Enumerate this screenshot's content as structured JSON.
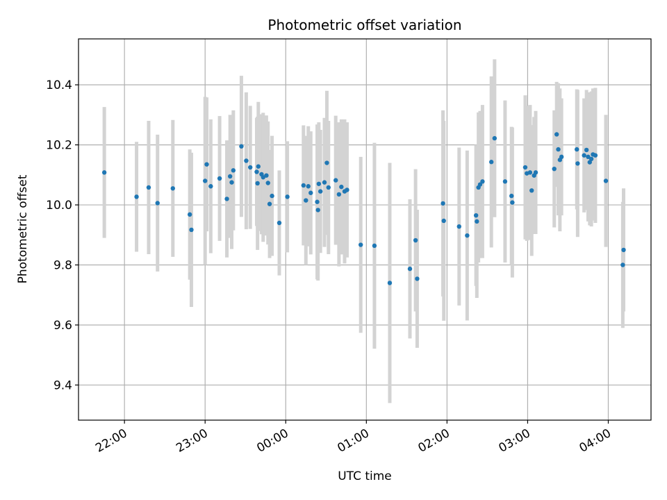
{
  "chart_data": {
    "type": "scatter",
    "title": "Photometric offset variation",
    "xlabel": "UTC time",
    "ylabel": "Photometric offset",
    "x_unit": "hours (UTC, continuing past 24:00 after midnight)",
    "xlim": [
      21.43,
      28.53
    ],
    "ylim": [
      9.283,
      10.553
    ],
    "x_ticks": [
      {
        "value": 22,
        "label": "22:00"
      },
      {
        "value": 23,
        "label": "23:00"
      },
      {
        "value": 24,
        "label": "00:00"
      },
      {
        "value": 25,
        "label": "01:00"
      },
      {
        "value": 26,
        "label": "02:00"
      },
      {
        "value": 27,
        "label": "03:00"
      },
      {
        "value": 28,
        "label": "04:00"
      }
    ],
    "y_ticks": [
      {
        "value": 9.4,
        "label": "9.4"
      },
      {
        "value": 9.6,
        "label": "9.6"
      },
      {
        "value": 9.8,
        "label": "9.8"
      },
      {
        "value": 10.0,
        "label": "10.0"
      },
      {
        "value": 10.2,
        "label": "10.2"
      },
      {
        "value": 10.4,
        "label": "10.4"
      }
    ],
    "grid": true,
    "colors": {
      "marker": "#1f77b4",
      "errorbar": "#d3d3d3",
      "grid": "#b0b0b0"
    },
    "points": [
      [
        21.75,
        10.108,
        0.218
      ],
      [
        22.15,
        10.027,
        0.183
      ],
      [
        22.3,
        10.058,
        0.222
      ],
      [
        22.41,
        10.006,
        0.228
      ],
      [
        22.6,
        10.055,
        0.228
      ],
      [
        22.81,
        9.968,
        0.217
      ],
      [
        22.83,
        9.917,
        0.257
      ],
      [
        23.0,
        10.08,
        0.28
      ],
      [
        23.02,
        10.135,
        0.223
      ],
      [
        23.07,
        10.062,
        0.223
      ],
      [
        23.18,
        10.088,
        0.208
      ],
      [
        23.27,
        10.02,
        0.195
      ],
      [
        23.31,
        10.095,
        0.205
      ],
      [
        23.33,
        10.075,
        0.222
      ],
      [
        23.35,
        10.115,
        0.2
      ],
      [
        23.45,
        10.195,
        0.235
      ],
      [
        23.51,
        10.147,
        0.228
      ],
      [
        23.56,
        10.125,
        0.205
      ],
      [
        23.64,
        10.11,
        0.18
      ],
      [
        23.65,
        10.072,
        0.222
      ],
      [
        23.66,
        10.128,
        0.215
      ],
      [
        23.7,
        10.102,
        0.2
      ],
      [
        23.72,
        10.092,
        0.215
      ],
      [
        23.76,
        10.098,
        0.2
      ],
      [
        23.78,
        10.073,
        0.205
      ],
      [
        23.8,
        10.003,
        0.18
      ],
      [
        23.83,
        10.03,
        0.2
      ],
      [
        23.92,
        9.94,
        0.175
      ],
      [
        24.02,
        10.027,
        0.185
      ],
      [
        24.22,
        10.065,
        0.2
      ],
      [
        24.25,
        10.015,
        0.215
      ],
      [
        24.28,
        10.062,
        0.2
      ],
      [
        24.31,
        10.04,
        0.205
      ],
      [
        24.39,
        10.01,
        0.258
      ],
      [
        24.4,
        9.983,
        0.235
      ],
      [
        24.41,
        10.07,
        0.205
      ],
      [
        24.43,
        10.045,
        0.205
      ],
      [
        24.48,
        10.075,
        0.215
      ],
      [
        24.51,
        10.14,
        0.24
      ],
      [
        24.53,
        10.058,
        0.222
      ],
      [
        24.62,
        10.082,
        0.215
      ],
      [
        24.66,
        10.035,
        0.24
      ],
      [
        24.69,
        10.06,
        0.225
      ],
      [
        24.73,
        10.045,
        0.24
      ],
      [
        24.76,
        10.05,
        0.225
      ],
      [
        24.93,
        9.867,
        0.293
      ],
      [
        25.1,
        9.864,
        0.343
      ],
      [
        25.29,
        9.74,
        0.4
      ],
      [
        25.54,
        9.787,
        0.232
      ],
      [
        25.61,
        9.882,
        0.237
      ],
      [
        25.63,
        9.754,
        0.23
      ],
      [
        25.95,
        10.005,
        0.31
      ],
      [
        25.96,
        9.947,
        0.333
      ],
      [
        26.15,
        9.928,
        0.263
      ],
      [
        26.25,
        9.898,
        0.283
      ],
      [
        26.36,
        9.965,
        0.235
      ],
      [
        26.37,
        9.945,
        0.255
      ],
      [
        26.39,
        10.058,
        0.25
      ],
      [
        26.41,
        10.068,
        0.245
      ],
      [
        26.44,
        10.078,
        0.255
      ],
      [
        26.55,
        10.143,
        0.285
      ],
      [
        26.59,
        10.222,
        0.263
      ],
      [
        26.72,
        10.078,
        0.27
      ],
      [
        26.8,
        10.03,
        0.23
      ],
      [
        26.81,
        10.008,
        0.25
      ],
      [
        26.97,
        10.125,
        0.24
      ],
      [
        26.99,
        10.105,
        0.225
      ],
      [
        27.03,
        10.108,
        0.225
      ],
      [
        27.05,
        10.048,
        0.218
      ],
      [
        27.08,
        10.098,
        0.195
      ],
      [
        27.1,
        10.108,
        0.205
      ],
      [
        27.33,
        10.12,
        0.195
      ],
      [
        27.36,
        10.235,
        0.175
      ],
      [
        27.38,
        10.185,
        0.22
      ],
      [
        27.4,
        10.15,
        0.238
      ],
      [
        27.42,
        10.16,
        0.195
      ],
      [
        27.61,
        10.185,
        0.2
      ],
      [
        27.62,
        10.138,
        0.245
      ],
      [
        27.7,
        10.165,
        0.19
      ],
      [
        27.73,
        10.183,
        0.2
      ],
      [
        27.75,
        10.16,
        0.215
      ],
      [
        27.77,
        10.142,
        0.21
      ],
      [
        27.79,
        10.153,
        0.225
      ],
      [
        27.81,
        10.168,
        0.22
      ],
      [
        27.84,
        10.165,
        0.225
      ],
      [
        27.97,
        10.08,
        0.22
      ],
      [
        28.18,
        9.8,
        0.21
      ],
      [
        28.19,
        9.85,
        0.205
      ]
    ]
  }
}
